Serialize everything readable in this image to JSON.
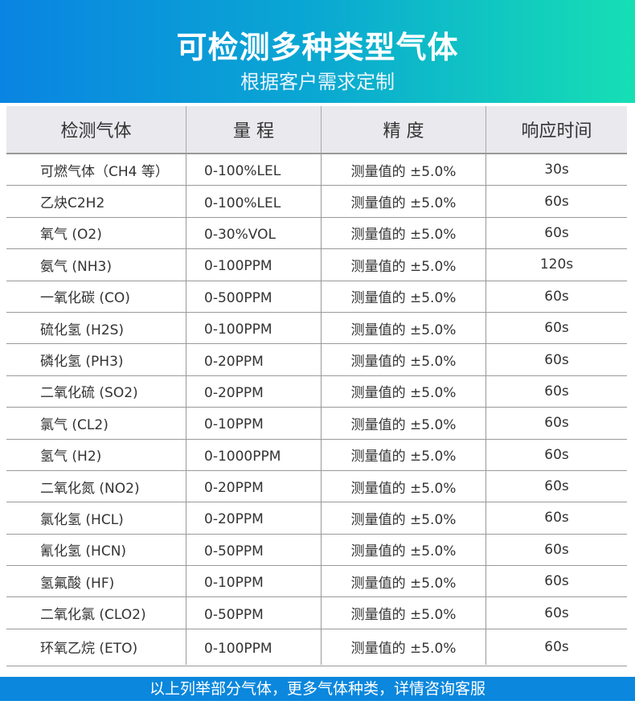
{
  "header": {
    "title": "可检测多种类型气体",
    "subtitle": "根据客户需求定制"
  },
  "table": {
    "columns": [
      "检测气体",
      "量 程",
      "精 度",
      "响应时间"
    ],
    "rows": [
      [
        "可燃气体（CH4 等）",
        "0-100%LEL",
        "测量值的 ±5.0%",
        "30s"
      ],
      [
        "乙炔C2H2",
        "0-100%LEL",
        "测量值的 ±5.0%",
        "60s"
      ],
      [
        "氧气 (O2)",
        "0-30%VOL",
        "测量值的 ±5.0%",
        "60s"
      ],
      [
        "氨气 (NH3)",
        "0-100PPM",
        "测量值的 ±5.0%",
        "120s"
      ],
      [
        "一氧化碳 (CO)",
        "0-500PPM",
        "测量值的 ±5.0%",
        "60s"
      ],
      [
        "硫化氢 (H2S)",
        "0-100PPM",
        "测量值的 ±5.0%",
        "60s"
      ],
      [
        "磷化氢 (PH3)",
        "0-20PPM",
        "测量值的 ±5.0%",
        "60s"
      ],
      [
        "二氧化硫 (SO2)",
        "0-20PPM",
        "测量值的 ±5.0%",
        "60s"
      ],
      [
        "氯气 (CL2)",
        "0-10PPM",
        "测量值的 ±5.0%",
        "60s"
      ],
      [
        "氢气 (H2)",
        "0-1000PPM",
        "测量值的 ±5.0%",
        "60s"
      ],
      [
        "二氧化氮 (NO2)",
        "0-20PPM",
        "测量值的 ±5.0%",
        "60s"
      ],
      [
        "氯化氢 (HCL)",
        "0-20PPM",
        "测量值的 ±5.0%",
        "60s"
      ],
      [
        "氰化氢 (HCN)",
        "0-50PPM",
        "测量值的 ±5.0%",
        "60s"
      ],
      [
        "氢氟酸 (HF)",
        "0-10PPM",
        "测量值的 ±5.0%",
        "60s"
      ],
      [
        "二氧化氯 (CLO2)",
        "0-50PPM",
        "测量值的 ±5.0%",
        "60s"
      ],
      [
        "环氧乙烷 (ETO)",
        "0-100PPM",
        "测量值的 ±5.0%",
        "60s"
      ]
    ]
  },
  "footer": {
    "text": "以上列举部分气体，更多气体种类，详情咨询客服"
  },
  "colors": {
    "gradient_start": "#0a84e2",
    "gradient_end": "#16dfb4",
    "footer_bg": "#0b87dd",
    "header_bg": "#e9e9ee"
  }
}
